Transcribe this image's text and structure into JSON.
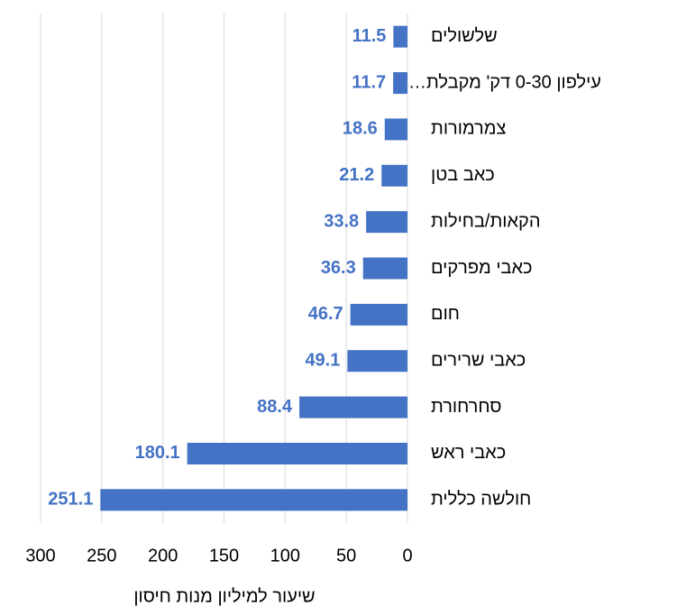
{
  "chart_data": {
    "type": "barh",
    "xlabel": "שיעור למיליון מנות חיסון",
    "categories": [
      "שלשולים",
      "עילפון 0-30 דק' מקבלת…",
      "צמרמורות",
      "כאב בטן",
      "הקאות/בחילות",
      "כאבי מפרקים",
      "חום",
      "כאבי שרירים",
      "סחרחורת",
      "כאבי ראש",
      "חולשה כללית"
    ],
    "values": [
      11.5,
      11.7,
      18.6,
      21.2,
      33.8,
      36.3,
      46.7,
      49.1,
      88.4,
      180.1,
      251.1
    ],
    "color": "#4472c4",
    "xlim": [
      0,
      300
    ],
    "xticks": [
      0,
      50,
      100,
      150,
      200,
      250,
      300
    ],
    "x_reversed": true,
    "grid": true
  }
}
